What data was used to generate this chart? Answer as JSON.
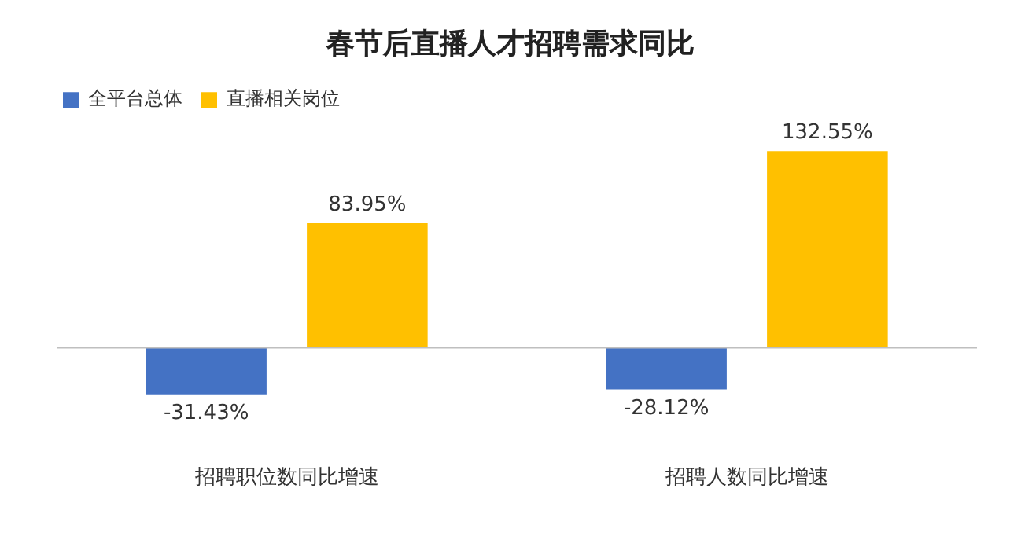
{
  "chart_data": {
    "type": "bar",
    "title": "春节后直播人才招聘需求同比",
    "categories": [
      "招聘职位数同比增速",
      "招聘人数同比增速"
    ],
    "series": [
      {
        "name": "全平台总体",
        "color": "#4472c4",
        "values": [
          -31.43,
          -28.12
        ],
        "value_labels": [
          "-31.43%",
          "-28.12%"
        ]
      },
      {
        "name": "直播相关岗位",
        "color": "#ffc000",
        "values": [
          83.95,
          132.55
        ],
        "value_labels": [
          "83.95%",
          "132.55%"
        ]
      }
    ],
    "legend": "top left",
    "grid": false
  }
}
